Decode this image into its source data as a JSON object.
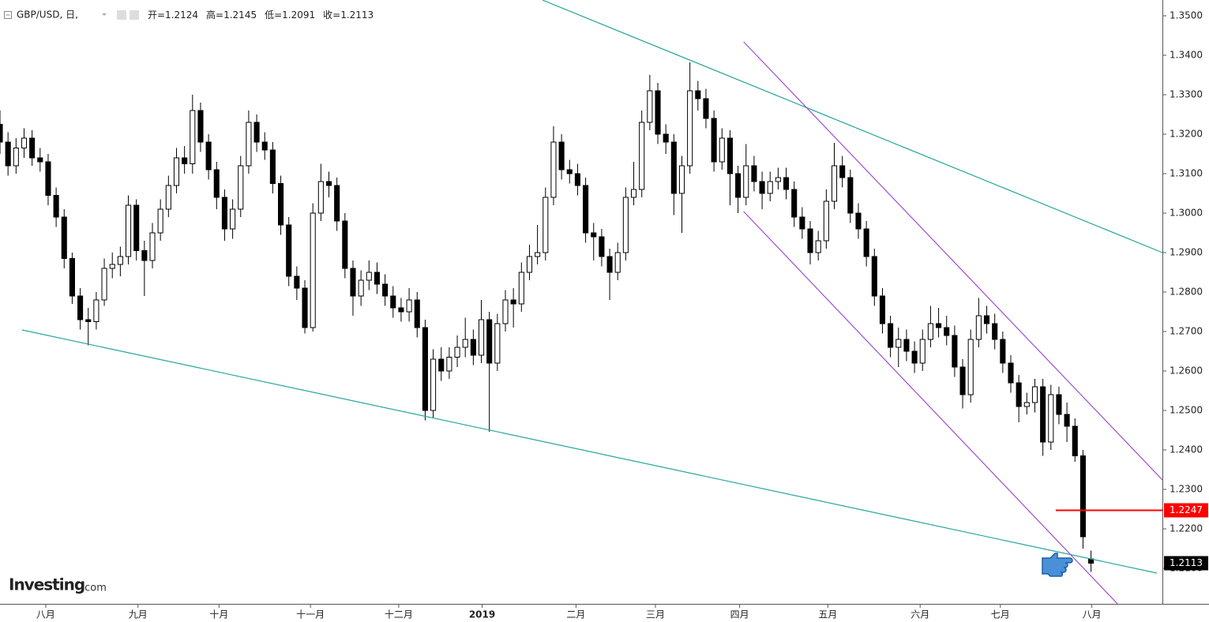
{
  "chart_data": {
    "type": "candlestick",
    "symbol": "GBP/USD, 日,",
    "header": [
      "开=1.2124",
      "高=1.2145",
      "低=1.2091",
      "收=1.2113"
    ],
    "watermark": [
      "Investing",
      ".com"
    ],
    "up_color": "#ffffff",
    "down_color": "#000000",
    "xlim": [
      0,
      144.9
    ],
    "xticks": [
      {
        "value": 5.7,
        "label": "八月"
      },
      {
        "value": 17.2,
        "label": "九月"
      },
      {
        "value": 27.3,
        "label": "十月"
      },
      {
        "value": 38.7,
        "label": "十一月"
      },
      {
        "value": 49.7,
        "label": "十二月"
      },
      {
        "value": 60.1,
        "label": "2019"
      },
      {
        "value": 71.8,
        "label": "二月"
      },
      {
        "value": 81.7,
        "label": "三月"
      },
      {
        "value": 92.2,
        "label": "四月"
      },
      {
        "value": 103.2,
        "label": "五月"
      },
      {
        "value": 114.7,
        "label": "六月"
      },
      {
        "value": 124.7,
        "label": "七月"
      },
      {
        "value": 136.1,
        "label": "八月"
      }
    ],
    "ylim": [
      1.201,
      1.354
    ],
    "yticks": [
      {
        "value": 1.35,
        "label": "1.3500"
      },
      {
        "value": 1.34,
        "label": "1.3400"
      },
      {
        "value": 1.33,
        "label": "1.3300"
      },
      {
        "value": 1.32,
        "label": "1.3200"
      },
      {
        "value": 1.31,
        "label": "1.3100"
      },
      {
        "value": 1.3,
        "label": "1.3000"
      },
      {
        "value": 1.29,
        "label": "1.2900"
      },
      {
        "value": 1.28,
        "label": "1.2800"
      },
      {
        "value": 1.27,
        "label": "1.2700"
      },
      {
        "value": 1.26,
        "label": "1.2600"
      },
      {
        "value": 1.25,
        "label": "1.2500"
      },
      {
        "value": 1.24,
        "label": "1.2400"
      },
      {
        "value": 1.23,
        "label": "1.2300"
      },
      {
        "value": 1.22,
        "label": "1.2200"
      },
      {
        "value": 1.21,
        "label": "1.2100"
      }
    ],
    "open": [
      1.3225,
      1.318,
      1.312,
      1.3165,
      1.319,
      1.314,
      1.313,
      1.3045,
      1.299,
      1.2885,
      1.279,
      1.273,
      1.2725,
      1.278,
      1.286,
      1.287,
      1.289,
      1.302,
      1.2905,
      1.288,
      1.295,
      1.301,
      1.307,
      1.314,
      1.3125,
      1.326,
      1.318,
      1.311,
      1.304,
      1.296,
      1.301,
      1.312,
      1.323,
      1.318,
      1.316,
      1.3075,
      1.297,
      1.284,
      1.281,
      1.271,
      1.3,
      1.308,
      1.307,
      1.298,
      1.286,
      1.279,
      1.283,
      1.285,
      1.282,
      1.279,
      1.276,
      1.275,
      1.278,
      1.271,
      1.25,
      1.263,
      1.26,
      1.2635,
      1.266,
      1.268,
      1.264,
      1.273,
      1.262,
      1.272,
      1.278,
      1.277,
      1.285,
      1.289,
      1.29,
      1.304,
      1.318,
      1.311,
      1.31,
      1.307,
      1.295,
      1.294,
      1.289,
      1.285,
      1.29,
      1.304,
      1.306,
      1.323,
      1.331,
      1.32,
      1.318,
      1.305,
      1.312,
      1.331,
      1.329,
      1.324,
      1.313,
      1.319,
      1.31,
      1.304,
      1.312,
      1.308,
      1.305,
      1.308,
      1.309,
      1.306,
      1.299,
      1.296,
      1.29,
      1.293,
      1.303,
      1.312,
      1.309,
      1.3,
      1.296,
      1.289,
      1.279,
      1.272,
      1.266,
      1.268,
      1.265,
      1.262,
      1.268,
      1.272,
      1.271,
      1.269,
      1.261,
      1.254,
      1.268,
      1.274,
      1.272,
      1.268,
      1.262,
      1.257,
      1.251,
      1.252,
      1.256,
      1.242,
      1.254,
      1.249,
      1.246,
      1.2385,
      1.2124
    ],
    "high": [
      1.326,
      1.3205,
      1.319,
      1.3215,
      1.321,
      1.3165,
      1.315,
      1.3065,
      1.301,
      1.29,
      1.281,
      1.276,
      1.28,
      1.2885,
      1.29,
      1.2915,
      1.3045,
      1.3035,
      1.293,
      1.2975,
      1.3035,
      1.3095,
      1.3165,
      1.317,
      1.33,
      1.328,
      1.32,
      1.313,
      1.306,
      1.3035,
      1.3145,
      1.326,
      1.325,
      1.3205,
      1.318,
      1.3095,
      1.299,
      1.2865,
      1.283,
      1.3025,
      1.3125,
      1.3105,
      1.309,
      1.3,
      1.288,
      1.2855,
      1.288,
      1.2875,
      1.2845,
      1.2815,
      1.2785,
      1.281,
      1.28,
      1.273,
      1.2655,
      1.266,
      1.266,
      1.269,
      1.2735,
      1.2705,
      1.278,
      1.275,
      1.2745,
      1.2805,
      1.281,
      1.2875,
      1.292,
      1.297,
      1.3065,
      1.322,
      1.32,
      1.3135,
      1.3125,
      1.309,
      1.2975,
      1.296,
      1.291,
      1.2925,
      1.3065,
      1.313,
      1.326,
      1.335,
      1.333,
      1.3225,
      1.32,
      1.3145,
      1.3382,
      1.3335,
      1.3315,
      1.326,
      1.3215,
      1.321,
      1.312,
      1.3175,
      1.3145,
      1.3105,
      1.3105,
      1.3115,
      1.3115,
      1.308,
      1.3015,
      1.298,
      1.2955,
      1.306,
      1.3178,
      1.3145,
      1.311,
      1.3025,
      1.298,
      1.291,
      1.281,
      1.274,
      1.271,
      1.2705,
      1.2675,
      1.2705,
      1.2765,
      1.276,
      1.274,
      1.2715,
      1.263,
      1.2705,
      1.2785,
      1.2765,
      1.2745,
      1.27,
      1.264,
      1.259,
      1.2545,
      1.258,
      1.258,
      1.2565,
      1.256,
      1.252,
      1.248,
      1.24,
      1.2145
    ],
    "low": [
      1.315,
      1.3095,
      1.31,
      1.314,
      1.312,
      1.3105,
      1.302,
      1.2965,
      1.286,
      1.277,
      1.2705,
      1.2665,
      1.2705,
      1.2765,
      1.2835,
      1.284,
      1.287,
      1.288,
      1.279,
      1.286,
      1.293,
      1.299,
      1.305,
      1.31,
      1.31,
      1.3155,
      1.3085,
      1.301,
      1.293,
      1.2935,
      1.299,
      1.31,
      1.3155,
      1.3135,
      1.305,
      1.2945,
      1.2815,
      1.278,
      1.2695,
      1.27,
      1.298,
      1.304,
      1.2955,
      1.2835,
      1.274,
      1.2765,
      1.2805,
      1.2795,
      1.2765,
      1.2735,
      1.2725,
      1.2725,
      1.2685,
      1.2475,
      1.248,
      1.2575,
      1.258,
      1.261,
      1.2635,
      1.2615,
      1.262,
      1.2446,
      1.26,
      1.27,
      1.271,
      1.275,
      1.283,
      1.287,
      1.288,
      1.302,
      1.3085,
      1.3075,
      1.3045,
      1.2925,
      1.288,
      1.2865,
      1.278,
      1.283,
      1.288,
      1.302,
      1.304,
      1.321,
      1.3175,
      1.315,
      1.2995,
      1.295,
      1.31,
      1.326,
      1.3215,
      1.3105,
      1.311,
      1.302,
      1.3,
      1.302,
      1.3055,
      1.301,
      1.303,
      1.306,
      1.3035,
      1.2965,
      1.2935,
      1.287,
      1.288,
      1.291,
      1.301,
      1.3065,
      1.2975,
      1.2935,
      1.2865,
      1.2765,
      1.2695,
      1.2635,
      1.261,
      1.2625,
      1.2595,
      1.26,
      1.266,
      1.2685,
      1.2665,
      1.2585,
      1.2505,
      1.252,
      1.266,
      1.2695,
      1.2655,
      1.2595,
      1.2545,
      1.247,
      1.249,
      1.2495,
      1.2385,
      1.24,
      1.2465,
      1.242,
      1.237,
      1.215,
      1.2091
    ],
    "close": [
      1.318,
      1.312,
      1.3165,
      1.319,
      1.314,
      1.313,
      1.3045,
      1.299,
      1.2885,
      1.279,
      1.273,
      1.2725,
      1.278,
      1.286,
      1.287,
      1.289,
      1.302,
      1.2905,
      1.288,
      1.295,
      1.301,
      1.307,
      1.314,
      1.3125,
      1.326,
      1.318,
      1.311,
      1.304,
      1.296,
      1.301,
      1.312,
      1.323,
      1.318,
      1.316,
      1.3075,
      1.297,
      1.284,
      1.281,
      1.271,
      1.3,
      1.308,
      1.307,
      1.298,
      1.286,
      1.279,
      1.283,
      1.285,
      1.282,
      1.279,
      1.276,
      1.275,
      1.278,
      1.271,
      1.25,
      1.263,
      1.26,
      1.2635,
      1.266,
      1.268,
      1.264,
      1.273,
      1.262,
      1.272,
      1.278,
      1.277,
      1.285,
      1.289,
      1.29,
      1.304,
      1.318,
      1.311,
      1.31,
      1.307,
      1.295,
      1.294,
      1.289,
      1.285,
      1.29,
      1.304,
      1.306,
      1.323,
      1.331,
      1.32,
      1.318,
      1.305,
      1.312,
      1.331,
      1.329,
      1.324,
      1.313,
      1.319,
      1.31,
      1.304,
      1.312,
      1.308,
      1.305,
      1.308,
      1.309,
      1.306,
      1.299,
      1.296,
      1.29,
      1.293,
      1.303,
      1.312,
      1.309,
      1.3,
      1.296,
      1.289,
      1.279,
      1.272,
      1.266,
      1.268,
      1.265,
      1.262,
      1.268,
      1.272,
      1.271,
      1.269,
      1.261,
      1.254,
      1.268,
      1.274,
      1.272,
      1.268,
      1.262,
      1.257,
      1.251,
      1.252,
      1.256,
      1.242,
      1.254,
      1.249,
      1.246,
      1.2385,
      1.218,
      1.2113
    ],
    "trendlines": [
      {
        "color": "#26a69a",
        "points": [
          [
            67.6,
            1.354
          ],
          [
            144.9,
            1.29
          ]
        ]
      },
      {
        "color": "#26a69a",
        "points": [
          [
            2.76,
            1.2704
          ],
          [
            144.2,
            1.2088
          ]
        ]
      },
      {
        "color": "#9c4fd0",
        "points": [
          [
            92.7,
            1.3434
          ],
          [
            144.9,
            1.2324
          ]
        ]
      },
      {
        "color": "#9c4fd0",
        "points": [
          [
            92.7,
            1.3004
          ],
          [
            139.3,
            1.201
          ]
        ]
      }
    ],
    "level": {
      "value": 1.2247,
      "start": 131.6,
      "color": "#ff0000"
    },
    "last_price": 1.2113
  }
}
